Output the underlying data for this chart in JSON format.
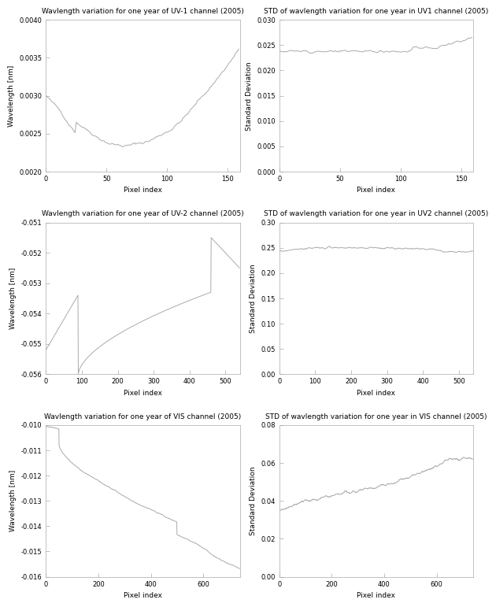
{
  "title_uv1_left": "Wavlength variation for one year of UV-1 channel (2005)",
  "title_uv1_right": "STD of wavlength variation for one year in UV1 channel (2005)",
  "title_uv2_left": "Wavlength variation for one year of UV-2 channel (2005)",
  "title_uv2_right": "STD of wavlength variation for one year in UV2 channel (2005)",
  "title_vis_left": "Wavlength variation for one year of VIS channel (2005)",
  "title_vis_right": "STD of wavlength variation for one year in VIS channel (2005)",
  "xlabel": "Pixel index",
  "ylabel_left": "Wavelength [nm]",
  "ylabel_right": "Standard Deviation",
  "uv1_xlim": [
    0,
    160
  ],
  "uv1_ylim": [
    0.002,
    0.004
  ],
  "uv1_std_ylim": [
    0.0,
    0.03
  ],
  "uv2_xlim": [
    0,
    540
  ],
  "uv2_ylim": [
    -0.056,
    -0.051
  ],
  "uv2_std_ylim": [
    0.0,
    0.3
  ],
  "vis_xlim": [
    0,
    740
  ],
  "vis_ylim": [
    -0.016,
    -0.01
  ],
  "vis_std_ylim": [
    0.0,
    0.08
  ],
  "line_color": "#aaaaaa",
  "bg_color": "#ffffff"
}
